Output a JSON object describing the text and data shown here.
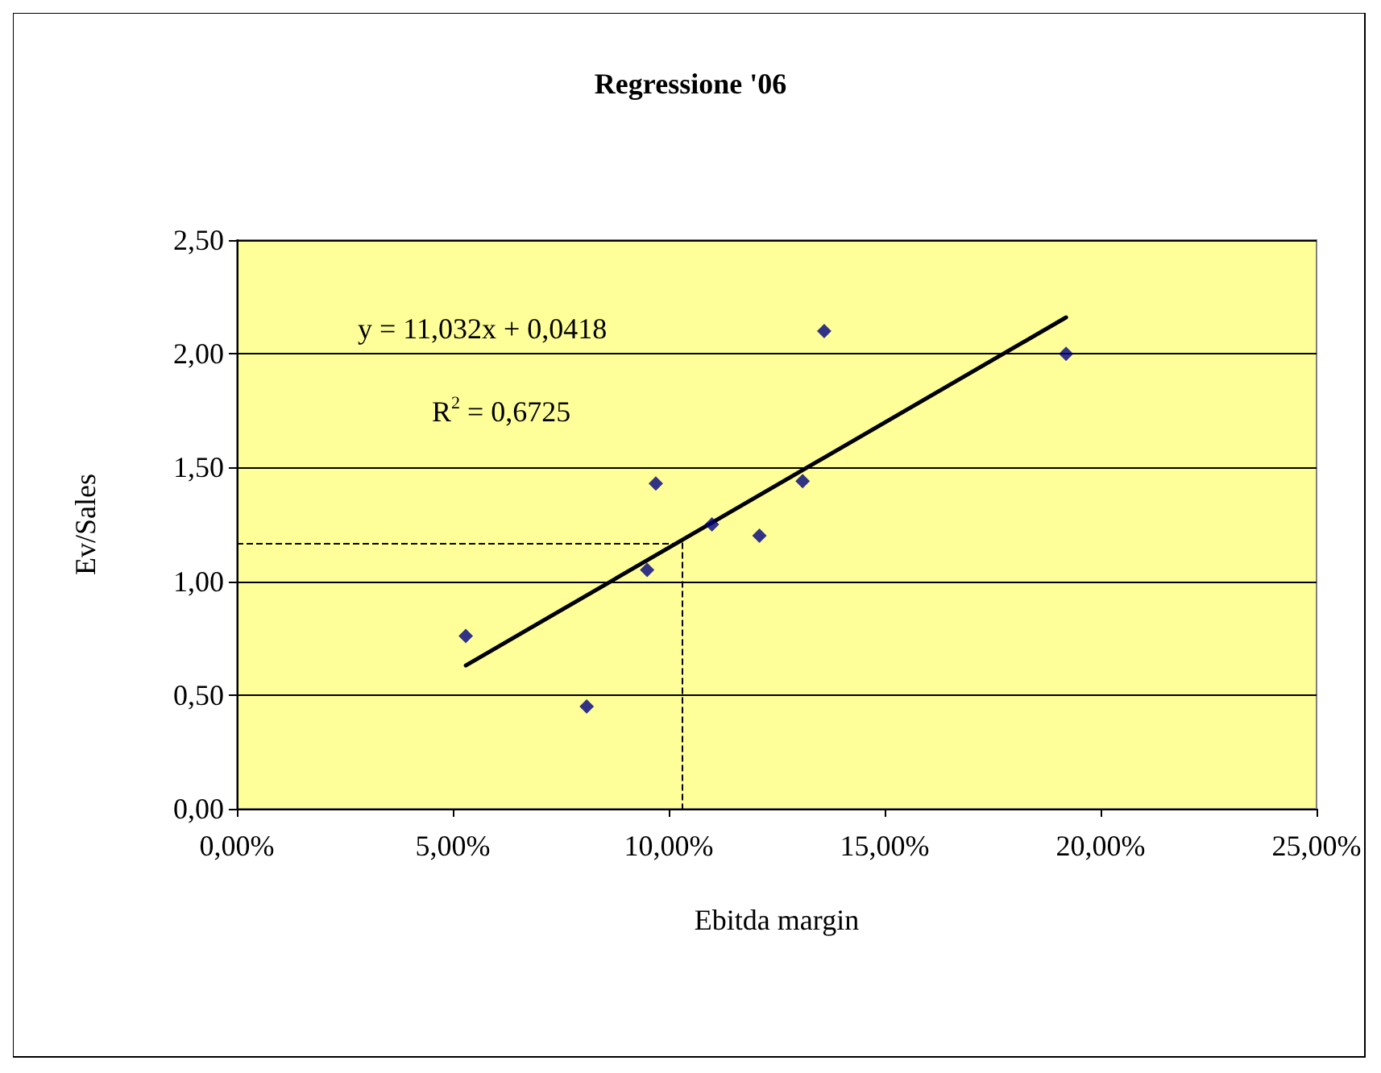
{
  "chart_data": {
    "type": "scatter",
    "title": "Regressione '06",
    "xlabel": "Ebitda margin",
    "ylabel": "Ev/Sales",
    "annotations": [
      "y = 11,032x + 0,0418",
      "R$^{2}$ = 0,6725"
    ],
    "x": [
      5.3,
      8.1,
      9.5,
      9.7,
      11.0,
      12.1,
      13.1,
      13.6,
      19.2
    ],
    "series": [
      {
        "color": "#000080",
        "values": [
          0.76,
          0.45,
          1.05,
          1.43,
          1.25,
          1.2,
          1.44,
          2.1,
          2.0
        ]
      },
      {
        "type": "line",
        "marker": "none",
        "color": "#000000",
        "x": [
          5.3,
          19.2
        ],
        "values": [
          0.63,
          2.16
        ]
      }
    ],
    "xlim": [
      0,
      25
    ],
    "xticks": [
      {
        "value": 0,
        "label": "0,00%"
      },
      {
        "value": 5,
        "label": "5,00%"
      },
      {
        "value": 10,
        "label": "10,00%"
      },
      {
        "value": 15,
        "label": "15,00%"
      },
      {
        "value": 20,
        "label": "20,00%"
      },
      {
        "value": 25,
        "label": "25,00%"
      }
    ],
    "ylim": [
      0,
      2.5
    ],
    "yticks": [
      {
        "value": 0,
        "label": "0,00"
      },
      {
        "value": 0.5,
        "label": "0,50"
      },
      {
        "value": 1,
        "label": "1,00"
      },
      {
        "value": 1.5,
        "label": "1,50"
      },
      {
        "value": 2,
        "label": "2,00"
      },
      {
        "value": 2.5,
        "label": "2,50"
      }
    ],
    "ref_lines": [
      {
        "axis": "y",
        "value": 1.17,
        "color": "#000000",
        "line_style": "dashed"
      },
      {
        "axis": "x",
        "value": 10.3,
        "color": "#000000",
        "line_style": "dashed"
      }
    ],
    "grid": "y",
    "marker": "diamond"
  }
}
